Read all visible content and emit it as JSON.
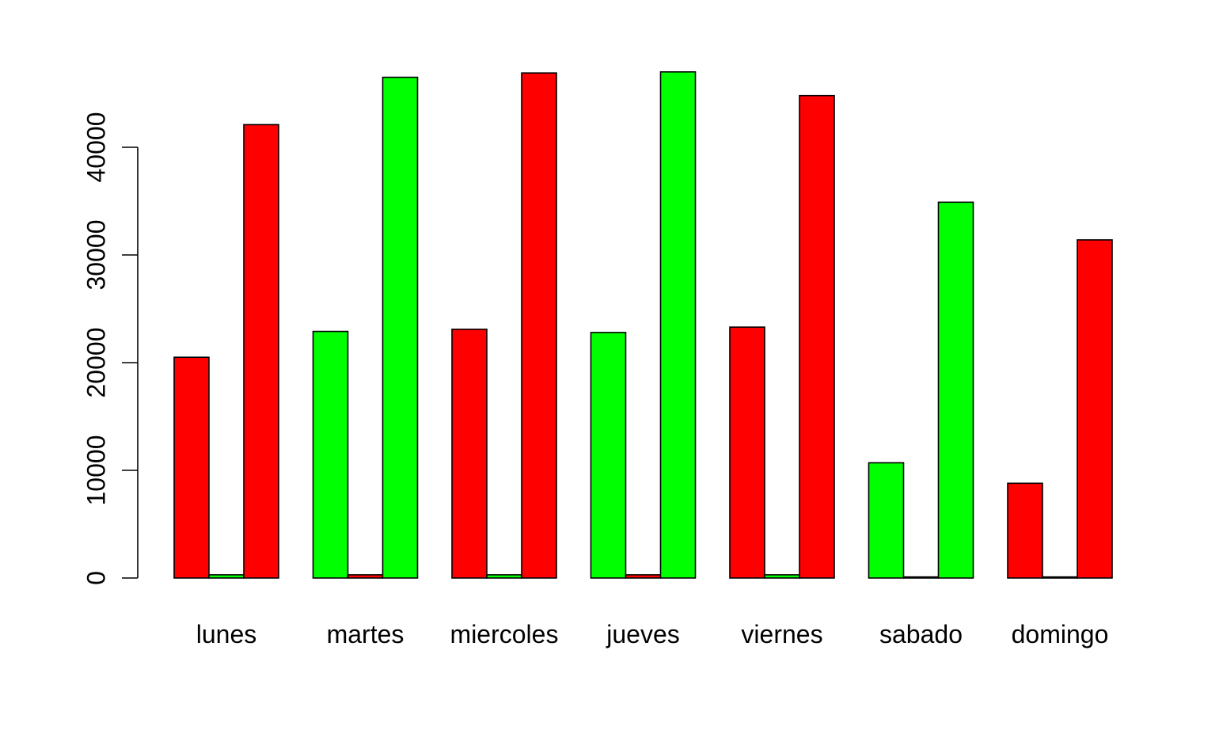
{
  "chart_data": {
    "type": "bar",
    "categories": [
      "lunes",
      "martes",
      "miercoles",
      "jueves",
      "viernes",
      "sabado",
      "domingo"
    ],
    "bar_order_per_group": [
      "first",
      "second",
      "third"
    ],
    "groups": [
      {
        "category": "lunes",
        "values": [
          20500,
          300,
          42100
        ],
        "colors": [
          "#ff0000",
          "#00ff00",
          "#ff0000"
        ]
      },
      {
        "category": "martes",
        "values": [
          22900,
          300,
          46500
        ],
        "colors": [
          "#00ff00",
          "#ff0000",
          "#00ff00"
        ]
      },
      {
        "category": "miercoles",
        "values": [
          23100,
          300,
          46900
        ],
        "colors": [
          "#ff0000",
          "#00ff00",
          "#ff0000"
        ]
      },
      {
        "category": "jueves",
        "values": [
          22800,
          300,
          47000
        ],
        "colors": [
          "#00ff00",
          "#ff0000",
          "#00ff00"
        ]
      },
      {
        "category": "viernes",
        "values": [
          23300,
          300,
          44800
        ],
        "colors": [
          "#ff0000",
          "#00ff00",
          "#ff0000"
        ]
      },
      {
        "category": "sabado",
        "values": [
          10700,
          100,
          34900
        ],
        "colors": [
          "#00ff00",
          "#ff0000",
          "#00ff00"
        ]
      },
      {
        "category": "domingo",
        "values": [
          8800,
          100,
          31400
        ],
        "colors": [
          "#ff0000",
          "#00ff00",
          "#ff0000"
        ]
      }
    ],
    "y_ticks": [
      0,
      10000,
      20000,
      30000,
      40000
    ],
    "ylim": [
      0,
      48000
    ],
    "title": "",
    "xlabel": "",
    "ylabel": "",
    "grid": false,
    "legend": "none",
    "colors": {
      "red": "#ff0000",
      "green": "#00ff00",
      "outline": "#000000"
    }
  }
}
